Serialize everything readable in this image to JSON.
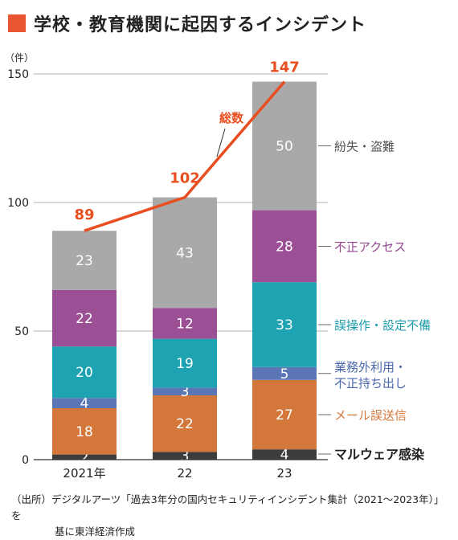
{
  "title": "学校・教育機関に起因するインシデント",
  "source_line1": "（出所）デジタルアーツ「過去3年分の国内セキュリティインシデント集計（2021～2023年）」を",
  "source_line2": "基に東洋経済作成",
  "colors": {
    "accent": "#ea5532",
    "total_line": "#e84e1f"
  },
  "chart_data": {
    "type": "bar",
    "stacked": true,
    "unit_label": "（件）",
    "categories": [
      "2021年",
      "22",
      "23"
    ],
    "ylim": [
      0,
      150
    ],
    "yticks": [
      0,
      50,
      100,
      150
    ],
    "grid": true,
    "series": [
      {
        "name": "マルウェア感染",
        "values": [
          2,
          3,
          4
        ],
        "color": "#3c3c3c",
        "label_color": "#222222",
        "legend_line2": ""
      },
      {
        "name": "メール誤送信",
        "values": [
          18,
          22,
          27
        ],
        "color": "#d4773a",
        "label_color": "#d4773a",
        "legend_line2": ""
      },
      {
        "name": "業務外利用・",
        "values": [
          4,
          3,
          5
        ],
        "color": "#5a76b5",
        "label_color": "#4a67ad",
        "legend_line2": "不正持ち出し"
      },
      {
        "name": "誤操作・設定不備",
        "values": [
          20,
          19,
          33
        ],
        "color": "#1ea3b2",
        "label_color": "#1a9aaa",
        "legend_line2": ""
      },
      {
        "name": "不正アクセス",
        "values": [
          22,
          12,
          28
        ],
        "color": "#9b4f95",
        "label_color": "#93478d",
        "legend_line2": ""
      },
      {
        "name": "紛失・盗難",
        "values": [
          23,
          43,
          50
        ],
        "color": "#a9a9a9",
        "label_color": "#555555",
        "legend_line2": ""
      }
    ],
    "totals": {
      "name": "総数",
      "values": [
        89,
        102,
        147
      ]
    }
  }
}
